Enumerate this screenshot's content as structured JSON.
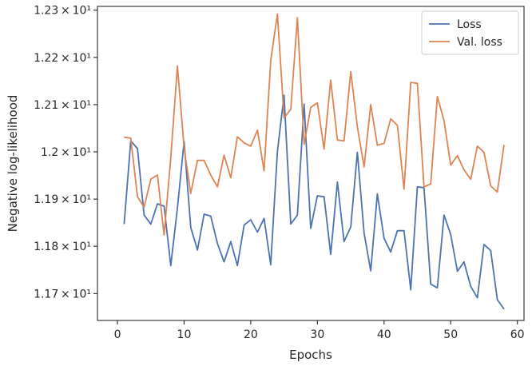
{
  "chart_data": {
    "type": "line",
    "xlabel": "Epochs",
    "ylabel": "Negative log-likelihood",
    "xlim": [
      -3,
      61
    ],
    "ylim": [
      11.643,
      12.308
    ],
    "x_ticks": [
      0,
      10,
      20,
      30,
      40,
      50,
      60
    ],
    "y_ticks": [
      {
        "value": 11.7,
        "label": "1.17 × 10¹"
      },
      {
        "value": 11.8,
        "label": "1.18 × 10¹"
      },
      {
        "value": 11.9,
        "label": "1.19 × 10¹"
      },
      {
        "value": 12.0,
        "label": "1.2 × 10¹"
      },
      {
        "value": 12.1,
        "label": "1.21 × 10¹"
      },
      {
        "value": 12.2,
        "label": "1.22 × 10¹"
      },
      {
        "value": 12.3,
        "label": "1.23 × 10¹"
      }
    ],
    "legend_position": "top-right",
    "grid": false,
    "x": [
      1,
      2,
      3,
      4,
      5,
      6,
      7,
      8,
      9,
      10,
      11,
      12,
      13,
      14,
      15,
      16,
      17,
      18,
      19,
      20,
      21,
      22,
      23,
      24,
      25,
      26,
      27,
      28,
      29,
      30,
      31,
      32,
      33,
      34,
      35,
      36,
      37,
      38,
      39,
      40,
      41,
      42,
      43,
      44,
      45,
      46,
      47,
      48,
      49,
      50,
      51,
      52,
      53,
      54,
      55,
      56,
      57,
      58
    ],
    "series": [
      {
        "name": "Loss",
        "color": "#4c72b0",
        "values": [
          11.847,
          12.023,
          12.007,
          11.866,
          11.847,
          11.89,
          11.885,
          11.759,
          11.881,
          12.022,
          11.84,
          11.792,
          11.868,
          11.864,
          11.806,
          11.767,
          11.81,
          11.759,
          11.845,
          11.856,
          11.83,
          11.859,
          11.761,
          12.001,
          12.12,
          11.847,
          11.866,
          12.101,
          11.838,
          11.907,
          11.905,
          11.783,
          11.936,
          11.81,
          11.841,
          11.999,
          11.828,
          11.748,
          11.911,
          11.817,
          11.788,
          11.833,
          11.833,
          11.708,
          11.926,
          11.924,
          11.72,
          11.712,
          11.866,
          11.825,
          11.747,
          11.767,
          11.715,
          11.691,
          11.804,
          11.791,
          11.687,
          11.667
        ]
      },
      {
        "name": "Val. loss",
        "color": "#dd8452",
        "values": [
          12.031,
          12.029,
          11.905,
          11.883,
          11.942,
          11.951,
          11.824,
          11.987,
          12.182,
          12.008,
          11.912,
          11.982,
          11.982,
          11.951,
          11.926,
          11.993,
          11.945,
          12.032,
          12.019,
          12.012,
          12.046,
          11.96,
          12.193,
          12.292,
          12.072,
          12.09,
          12.284,
          12.016,
          12.094,
          12.104,
          12.006,
          12.152,
          12.025,
          12.023,
          12.17,
          12.053,
          11.968,
          12.1,
          12.014,
          12.018,
          12.07,
          12.056,
          11.921,
          12.147,
          12.145,
          11.926,
          11.932,
          12.117,
          12.066,
          11.972,
          11.992,
          11.962,
          11.942,
          12.012,
          11.999,
          11.928,
          11.915,
          12.015
        ]
      }
    ]
  }
}
